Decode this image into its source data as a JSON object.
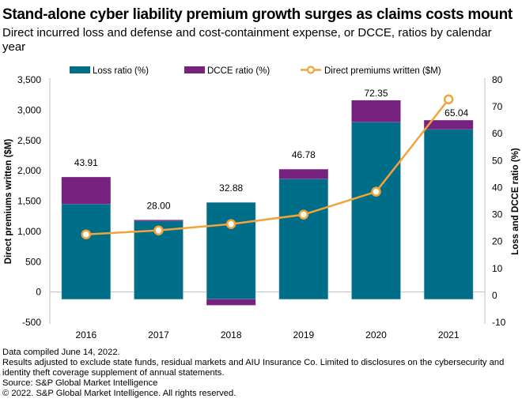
{
  "chart_data": {
    "type": "bar",
    "title": "Stand-alone cyber liability premium growth surges as claims costs mount",
    "subtitle": "Direct incurred loss and defense and cost-containment expense, or DCCE, ratios by calendar year",
    "categories": [
      "2016",
      "2017",
      "2018",
      "2019",
      "2020",
      "2021"
    ],
    "series": [
      {
        "name": "Loss ratio (%)",
        "kind": "stacked-bar",
        "axis": "right",
        "color": "#006d89",
        "values": [
          33.9,
          27.6,
          34.5,
          43.2,
          64.3,
          61.6
        ]
      },
      {
        "name": "DCCE ratio (%)",
        "kind": "stacked-bar",
        "axis": "right",
        "color": "#782280",
        "values": [
          10.0,
          0.4,
          -1.6,
          3.6,
          8.1,
          3.4
        ]
      },
      {
        "name": "Direct premiums written ($M)",
        "kind": "line",
        "axis": "left",
        "color": "#f2a33a",
        "values": [
          950,
          1016,
          1120,
          1276,
          1654,
          3177
        ]
      }
    ],
    "data_labels": [
      "43.91",
      "28.00",
      "32.88",
      "46.78",
      "72.35",
      "65.04"
    ],
    "ylabel": "Direct premiums written ($M)",
    "y2label": "Loss and DCCE ratio (%)",
    "ylim": [
      -500,
      3500
    ],
    "y2lim": [
      -10,
      80
    ],
    "yticks": [
      "-500",
      "0",
      "500",
      "1,000",
      "1,500",
      "2,000",
      "2,500",
      "3,000",
      "3,500"
    ],
    "y2ticks": [
      "-10",
      "0",
      "10",
      "20",
      "30",
      "40",
      "50",
      "60",
      "70",
      "80"
    ],
    "legend_position": "top",
    "grid": false
  },
  "footnotes": [
    "Data compiled June 14, 2022.",
    "Results adjusted to exclude state funds, residual markets and AIU Insurance Co. Limited to disclosures on the cybersecurity and identity theft coverage supplement of annual statements.",
    "Source: S&P Global Market Intelligence",
    "© 2022. S&P Global Market Intelligence. All rights reserved."
  ]
}
